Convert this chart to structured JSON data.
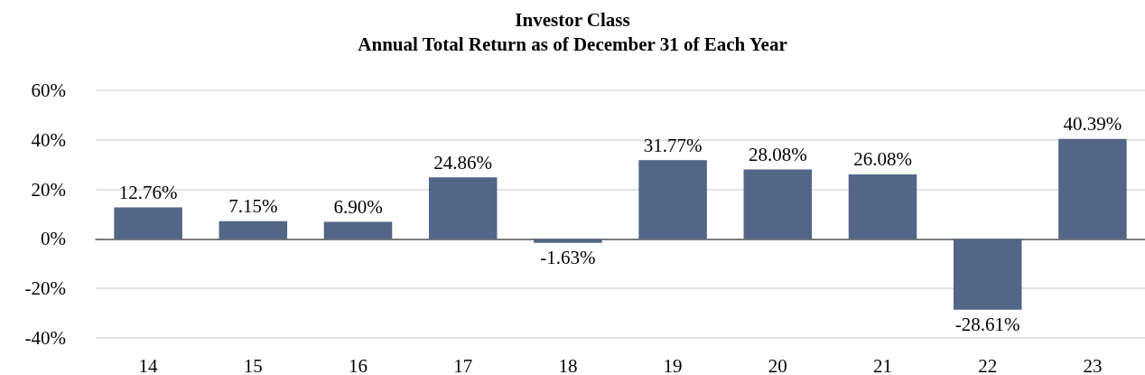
{
  "chart_data": {
    "type": "bar",
    "title": "Investor Class",
    "subtitle": "Annual Total Return as of December 31 of Each Year",
    "categories": [
      "14",
      "15",
      "16",
      "17",
      "18",
      "19",
      "20",
      "21",
      "22",
      "23"
    ],
    "values": [
      12.76,
      7.15,
      6.9,
      24.86,
      -1.63,
      31.77,
      28.08,
      26.08,
      -28.61,
      40.39
    ],
    "value_labels": [
      "12.76%",
      "7.15%",
      "6.90%",
      "24.86%",
      "-1.63%",
      "31.77%",
      "28.08%",
      "26.08%",
      "-28.61%",
      "40.39%"
    ],
    "color": "#536687",
    "ylim": [
      -40,
      60
    ],
    "yticks": [
      {
        "value": -40,
        "label": "-40%"
      },
      {
        "value": -20,
        "label": "-20%"
      },
      {
        "value": 0,
        "label": "0%"
      },
      {
        "value": 20,
        "label": "20%"
      },
      {
        "value": 40,
        "label": "40%"
      },
      {
        "value": 60,
        "label": "60%"
      }
    ],
    "grid": "y"
  }
}
